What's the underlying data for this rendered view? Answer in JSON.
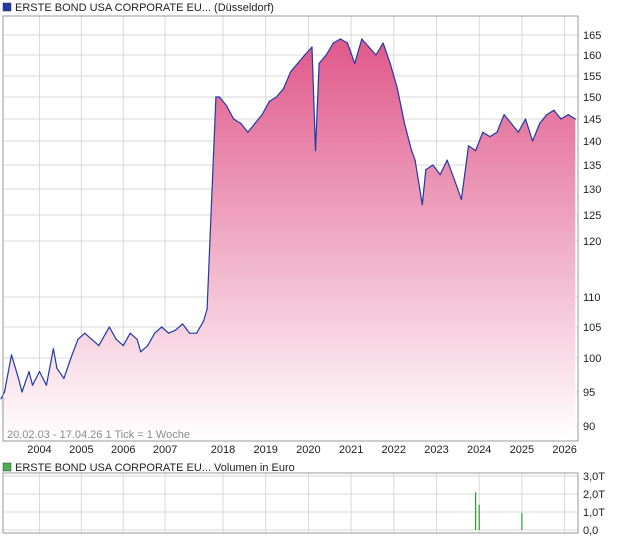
{
  "colors": {
    "price_line": "#1f3aa6",
    "area_top": "#e0588a",
    "area_bottom": "#ffffff",
    "volume_bar": "#2ca02c",
    "grid": "#d9d9d9",
    "frame": "#9a9a9a",
    "text": "#222222",
    "footnote_text": "#8c8c8c",
    "legend_price_swatch": "#1f3aa6",
    "legend_volume_swatch": "#4caf50"
  },
  "chart_data": [
    {
      "type": "area",
      "title": "ERSTE BOND USA CORPORATE EU... (Düsseldorf)",
      "legend_label": "ERSTE BOND USA CORPORATE EU... (Düsseldorf)",
      "x_ticks": [
        "2004",
        "2005",
        "2006",
        "2007",
        "2018",
        "2019",
        "2020",
        "2021",
        "2022",
        "2023",
        "2024",
        "2025",
        "2026"
      ],
      "y_ticks": [
        90,
        95,
        100,
        105,
        110,
        120,
        125,
        130,
        135,
        140,
        145,
        150,
        155,
        160,
        165
      ],
      "ylim": [
        88,
        168
      ],
      "grid": true,
      "footnote": "20.02.03 - 17.04.26   1 Tick = 1 Woche",
      "series": [
        {
          "x": [
            "2003-02",
            "2003-03",
            "2003-05",
            "2003-07",
            "2003-08",
            "2003-10",
            "2003-11",
            "2004-01",
            "2004-03",
            "2004-05",
            "2004-06",
            "2004-08",
            "2004-10",
            "2004-12",
            "2005-02",
            "2005-04",
            "2005-06",
            "2005-08",
            "2005-09",
            "2005-11",
            "2006-01",
            "2006-03",
            "2006-05",
            "2006-06",
            "2006-08",
            "2006-10",
            "2006-12",
            "2007-02",
            "2007-04",
            "2007-06",
            "2007-08",
            "2007-10",
            "2007-12",
            "2008-01",
            "2017-11",
            "2017-12",
            "2018-02",
            "2018-04",
            "2018-06",
            "2018-08",
            "2018-10",
            "2018-12",
            "2019-02",
            "2019-04",
            "2019-06",
            "2019-08",
            "2019-10",
            "2019-12",
            "2020-02",
            "2020-03",
            "2020-04",
            "2020-06",
            "2020-08",
            "2020-10",
            "2020-12",
            "2021-02",
            "2021-04",
            "2021-06",
            "2021-08",
            "2021-10",
            "2021-12",
            "2022-02",
            "2022-04",
            "2022-06",
            "2022-07",
            "2022-09",
            "2022-10",
            "2022-12",
            "2023-02",
            "2023-04",
            "2023-06",
            "2023-08",
            "2023-10",
            "2023-12",
            "2024-02",
            "2024-04",
            "2024-06",
            "2024-08",
            "2024-10",
            "2024-12",
            "2025-02",
            "2025-04",
            "2025-06",
            "2025-08",
            "2025-10",
            "2025-12",
            "2026-02",
            "2026-04"
          ],
          "values": [
            94,
            95,
            100.5,
            97,
            95,
            98,
            96,
            98,
            96,
            101.5,
            98.5,
            97,
            100,
            103,
            104,
            103,
            102,
            104,
            105,
            103,
            102,
            104,
            103,
            101,
            102,
            104,
            105,
            104,
            104.5,
            105.5,
            104,
            104,
            106,
            108,
            150,
            150,
            148,
            145,
            144,
            142,
            144,
            146,
            149,
            150,
            152,
            156,
            158,
            160,
            162,
            138,
            158,
            160,
            163,
            164,
            163,
            158,
            164,
            162,
            160,
            163,
            158,
            152,
            144,
            138,
            136,
            127,
            134,
            135,
            133,
            136,
            132,
            128,
            139,
            138,
            142,
            141,
            142,
            146,
            144,
            142,
            145,
            140,
            144,
            146,
            147,
            145,
            146,
            145
          ]
        }
      ]
    },
    {
      "type": "bar",
      "title": "ERSTE BOND USA CORPORATE EU... Volumen in Euro",
      "legend_label": "ERSTE BOND USA CORPORATE EU... Volumen in Euro",
      "y_tick_labels": [
        "0,0",
        "1,0T",
        "2,0T",
        "3,0T"
      ],
      "ylim": [
        0,
        3
      ],
      "grid": true,
      "series": [
        {
          "x": [
            "2023-12",
            "2024-01",
            "2025-01"
          ],
          "values": [
            2.1,
            1.4,
            0.95
          ]
        }
      ]
    }
  ]
}
